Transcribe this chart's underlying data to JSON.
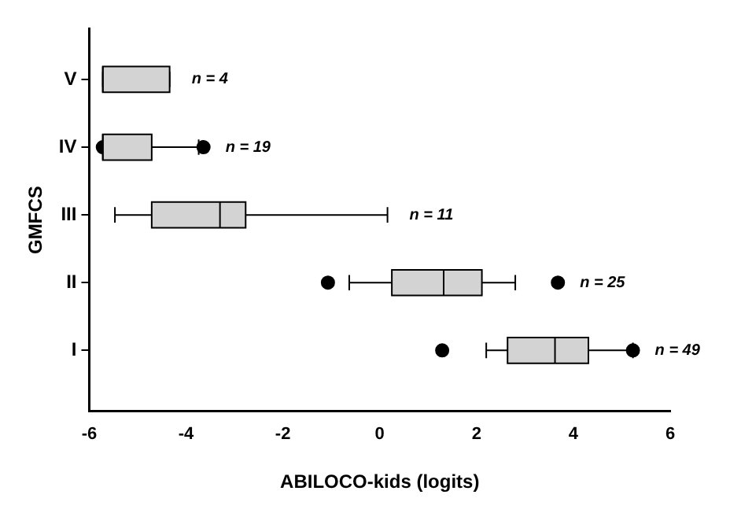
{
  "chart_data": {
    "type": "box",
    "orientation": "horizontal",
    "xlabel": "ABILOCO-kids (logits)",
    "ylabel": "GMFCS",
    "categories": [
      "V",
      "IV",
      "III",
      "II",
      "I"
    ],
    "boxes": [
      {
        "low": -5.72,
        "q1": -5.72,
        "median": -5.72,
        "q3": -4.34,
        "high": -4.34
      },
      {
        "low": -5.72,
        "q1": -5.72,
        "median": -5.72,
        "q3": -4.71,
        "high": -3.74,
        "outliers": [
          -5.72,
          -3.64
        ]
      },
      {
        "low": -5.47,
        "q1": -4.71,
        "median": -3.3,
        "q3": -2.77,
        "high": 0.16
      },
      {
        "low": -0.63,
        "q1": 0.25,
        "median": 1.32,
        "q3": 2.11,
        "high": 2.8,
        "outliers": [
          -1.07,
          3.68
        ]
      },
      {
        "low": 2.2,
        "q1": 2.64,
        "median": 3.62,
        "q3": 4.31,
        "high": 5.23,
        "outliers": [
          1.29,
          5.23
        ]
      }
    ],
    "color": "#d3d3d3",
    "xlim": [
      -6,
      6
    ],
    "xticks": [
      -6,
      -4,
      -2,
      0,
      2,
      4,
      6
    ],
    "grid": false,
    "legend": false,
    "annotations": [
      "n = 4",
      "n = 19",
      "n = 11",
      "n = 25",
      "n = 49"
    ]
  }
}
